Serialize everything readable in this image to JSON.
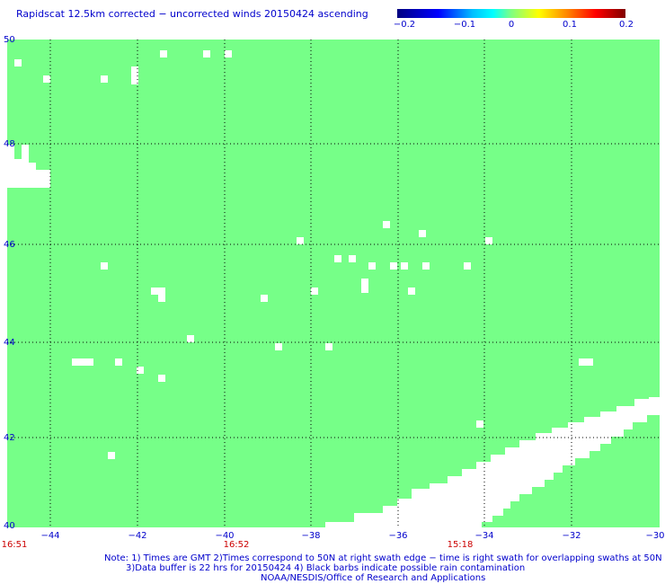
{
  "title": "Rapidscat 12.5km corrected − uncorrected winds 20150424 ascending",
  "colorbar": {
    "ticks": [
      "−0.2",
      "−0.1",
      "0",
      "0.1",
      "0.2"
    ],
    "range": [
      -0.2,
      0.2
    ]
  },
  "map": {
    "lon_range": [
      -45,
      -30
    ],
    "lat_range": [
      40,
      50
    ],
    "lon_ticks": [
      "−44",
      "−42",
      "−40",
      "−38",
      "−36",
      "−34",
      "−32",
      "−30"
    ],
    "lat_ticks": [
      "50",
      "48",
      "46",
      "44",
      "42",
      "40"
    ],
    "fill_color": "#76ff88",
    "gridlines": "dotted",
    "no_data_color": "#ffffff"
  },
  "time_labels": [
    "16:51",
    "16:52",
    "15:18"
  ],
  "notes": {
    "line1": "Note: 1) Times are GMT 2)Times correspond to 50N at right swath edge − time is right swath for overlapping swaths at 50N",
    "line2": "3)Data buffer is 22 hrs for 20150424 4) Black barbs indicate possible rain contamination",
    "line3": "NOAA/NESDIS/Office of Research and Applications"
  }
}
